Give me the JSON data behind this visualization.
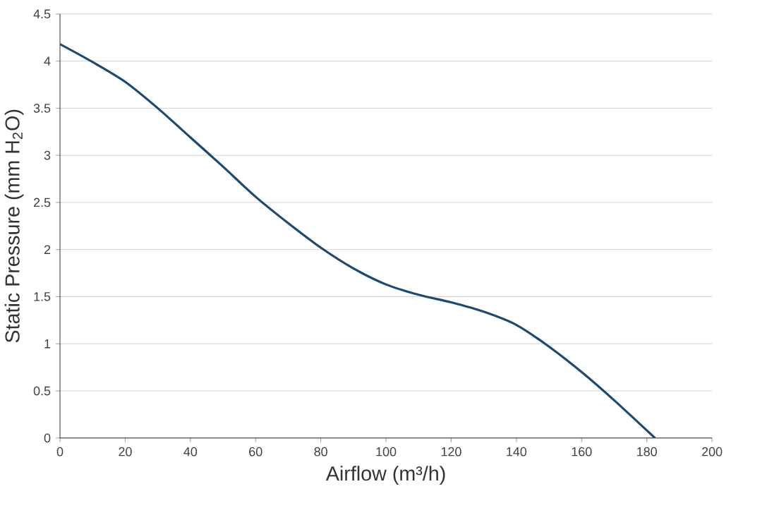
{
  "chart_data": {
    "type": "line",
    "xlabel": "Airflow (m³/h)",
    "ylabel": "Static Pressure (mm H$_{2}$O)",
    "x": [
      0,
      10,
      20,
      30,
      40,
      50,
      60,
      70,
      80,
      90,
      100,
      110,
      120,
      130,
      140,
      150,
      160,
      170,
      182.5
    ],
    "values": [
      4.18,
      3.99,
      3.78,
      3.5,
      3.19,
      2.88,
      2.56,
      2.28,
      2.02,
      1.8,
      1.63,
      1.52,
      1.44,
      1.34,
      1.2,
      0.97,
      0.7,
      0.4,
      0
    ],
    "color": "#1a4a72",
    "xlim": [
      0,
      200
    ],
    "ylim": [
      0,
      4.5
    ],
    "xticks": [
      0,
      20,
      40,
      60,
      80,
      100,
      120,
      140,
      160,
      180,
      200
    ],
    "yticks": [
      0,
      0.5,
      1,
      1.5,
      2,
      2.5,
      3,
      3.5,
      4,
      4.5
    ],
    "grid": "y",
    "marker": "none",
    "line_style": "solid"
  }
}
